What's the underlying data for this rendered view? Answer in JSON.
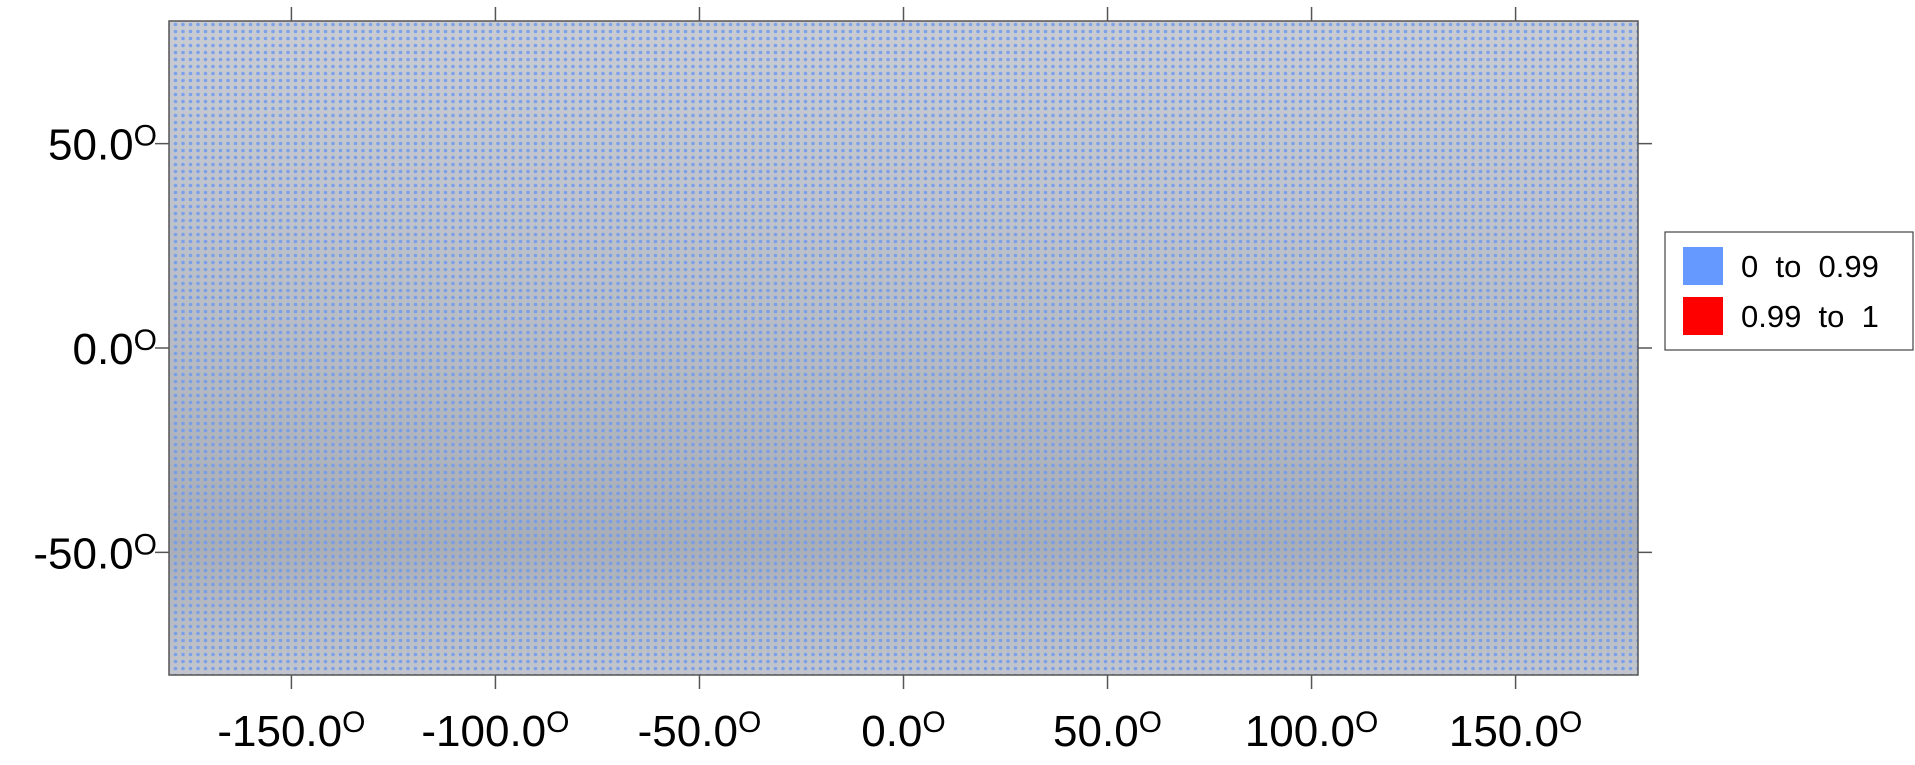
{
  "chart_data": {
    "type": "map",
    "degree_mark": "O",
    "xlim": [
      -180,
      180
    ],
    "ylim": [
      -80,
      80
    ],
    "xticks": [
      {
        "value": -150,
        "label": "-150.0"
      },
      {
        "value": -100,
        "label": "-100.0"
      },
      {
        "value": -50,
        "label": "-50.0"
      },
      {
        "value": 0,
        "label": "0.0"
      },
      {
        "value": 50,
        "label": "50.0"
      },
      {
        "value": 100,
        "label": "100.0"
      },
      {
        "value": 150,
        "label": "150.0"
      }
    ],
    "yticks": [
      {
        "value": 50,
        "label": "50.0"
      },
      {
        "value": 0,
        "label": "0.0"
      },
      {
        "value": -50,
        "label": "-50.0"
      }
    ],
    "legend_position": "right",
    "legend": [
      {
        "name": "0  to  0.99",
        "color": "#6699ff"
      },
      {
        "name": "0.99  to  1",
        "color": "#ff0000"
      }
    ]
  }
}
